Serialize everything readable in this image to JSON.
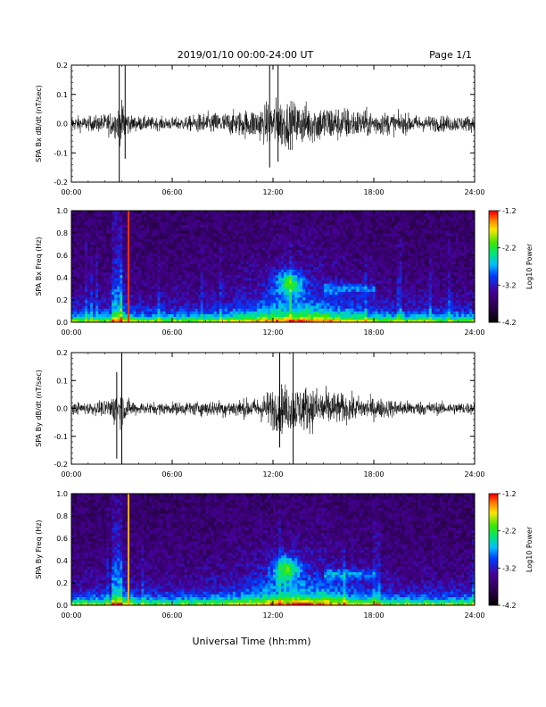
{
  "header": {
    "title": "2019/01/10  00:00-24:00 UT",
    "page_label": "Page 1/1"
  },
  "chart_data": [
    {
      "type": "line",
      "ylabel": "SPA Bx dB/dt (nT/sec)",
      "xlim": [
        "00:00",
        "24:00"
      ],
      "ylim": [
        -0.2,
        0.2
      ],
      "x_ticks": [
        "00:00",
        "06:00",
        "12:00",
        "18:00",
        "24:00"
      ],
      "y_ticks": [
        "-0.2",
        "-0.1",
        "0.0",
        "0.1",
        "0.2"
      ],
      "envelope": {
        "x_hours": [
          0,
          1,
          2,
          2.8,
          3.1,
          3.5,
          5,
          6,
          7,
          7.5,
          8,
          9,
          10,
          11,
          11.5,
          12,
          12.5,
          13,
          13.5,
          14,
          15,
          16,
          17,
          18,
          19,
          20,
          21,
          22,
          23,
          24
        ],
        "amplitude": [
          0.05,
          0.045,
          0.06,
          0.1,
          0.14,
          0.05,
          0.04,
          0.04,
          0.045,
          0.06,
          0.07,
          0.07,
          0.08,
          0.1,
          0.12,
          0.15,
          0.16,
          0.14,
          0.13,
          0.13,
          0.12,
          0.11,
          0.09,
          0.08,
          0.07,
          0.06,
          0.05,
          0.05,
          0.05,
          0.05
        ]
      },
      "spikes": [
        {
          "hour": 2.85,
          "min": -0.2,
          "max": 0.2
        },
        {
          "hour": 3.2,
          "min": -0.12,
          "max": 0.2
        },
        {
          "hour": 11.8,
          "min": -0.15,
          "max": 0.2
        },
        {
          "hour": 12.3,
          "min": -0.13,
          "max": 0.2
        }
      ]
    },
    {
      "type": "heatmap",
      "ylabel": "SPA Bx Freq (Hz)",
      "xlim": [
        "00:00",
        "24:00"
      ],
      "ylim": [
        0.0,
        1.0
      ],
      "x_ticks": [
        "00:00",
        "06:00",
        "12:00",
        "18:00",
        "24:00"
      ],
      "y_ticks": [
        "0.0",
        "0.2",
        "0.4",
        "0.6",
        "0.8",
        "1.0"
      ],
      "colorbar": {
        "label": "Log10 Power",
        "ticks": [
          "-1.2",
          "-2.2",
          "-3.2",
          "-4.2"
        ],
        "range": [
          -4.2,
          -1.2
        ]
      },
      "features": {
        "bright_line_hour": 3.4,
        "bright_line_color": "#ff3000",
        "blob_center_hour": 13.0,
        "blob_center_hz": 0.35,
        "band_hours": [
          15.0,
          18.0
        ],
        "band_hz": 0.3
      }
    },
    {
      "type": "line",
      "ylabel": "SPA By dB/dt (nT/sec)",
      "xlim": [
        "00:00",
        "24:00"
      ],
      "ylim": [
        -0.2,
        0.2
      ],
      "x_ticks": [
        "00:00",
        "06:00",
        "12:00",
        "18:00",
        "24:00"
      ],
      "y_ticks": [
        "-0.2",
        "-0.1",
        "0.0",
        "0.1",
        "0.2"
      ],
      "envelope": {
        "x_hours": [
          0,
          1,
          2,
          2.5,
          2.9,
          3.4,
          4,
          5,
          6,
          7,
          8,
          9,
          10,
          11,
          11.5,
          12,
          12.5,
          13,
          13.5,
          14,
          15,
          16,
          17,
          18,
          19,
          20,
          21,
          22,
          23,
          24
        ],
        "amplitude": [
          0.04,
          0.04,
          0.05,
          0.1,
          0.12,
          0.06,
          0.04,
          0.04,
          0.04,
          0.045,
          0.05,
          0.055,
          0.06,
          0.065,
          0.1,
          0.14,
          0.16,
          0.15,
          0.15,
          0.15,
          0.13,
          0.1,
          0.08,
          0.07,
          0.06,
          0.05,
          0.045,
          0.04,
          0.04,
          0.04
        ]
      },
      "spikes": [
        {
          "hour": 2.7,
          "min": -0.18,
          "max": 0.13
        },
        {
          "hour": 3.0,
          "min": -0.2,
          "max": 0.2
        },
        {
          "hour": 12.4,
          "min": -0.14,
          "max": 0.2
        },
        {
          "hour": 13.2,
          "min": -0.2,
          "max": 0.2
        }
      ]
    },
    {
      "type": "heatmap",
      "ylabel": "SPA By Freq (Hz)",
      "xlim": [
        "00:00",
        "24:00"
      ],
      "ylim": [
        0.0,
        1.0
      ],
      "x_ticks": [
        "00:00",
        "06:00",
        "12:00",
        "18:00",
        "24:00"
      ],
      "y_ticks": [
        "0.0",
        "0.2",
        "0.4",
        "0.6",
        "0.8",
        "1.0"
      ],
      "colorbar": {
        "label": "Log10 Power",
        "ticks": [
          "-1.2",
          "-2.2",
          "-3.2",
          "-4.2"
        ],
        "range": [
          -4.2,
          -1.2
        ]
      },
      "features": {
        "bright_line_hour": 3.4,
        "bright_line_color": "#ffb000",
        "blob_center_hour": 12.8,
        "blob_center_hz": 0.33,
        "band_hours": [
          15.0,
          18.0
        ],
        "band_hz": 0.28
      }
    }
  ],
  "footer": {
    "xlabel": "Universal Time (hh:mm)"
  }
}
